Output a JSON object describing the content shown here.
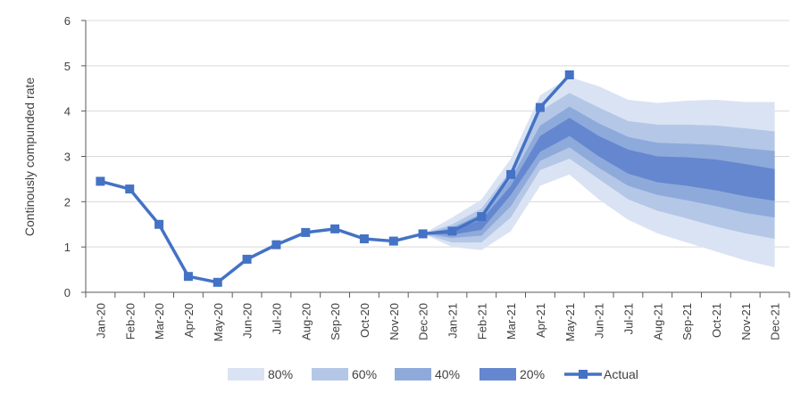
{
  "chart_data": {
    "type": "line",
    "ylabel": "Continously compunded rate",
    "ylim": [
      0,
      6
    ],
    "yticks": [
      0,
      1,
      2,
      3,
      4,
      5,
      6
    ],
    "grid": true,
    "legend_position": "bottom",
    "categories": [
      "Jan-20",
      "Feb-20",
      "Mar-20",
      "Apr-20",
      "May-20",
      "Jun-20",
      "Jul-20",
      "Aug-20",
      "Sep-20",
      "Oct-20",
      "Nov-20",
      "Dec-20",
      "Jan-21",
      "Feb-21",
      "Mar-21",
      "Apr-21",
      "May-21",
      "Jun-21",
      "Jul-21",
      "Aug-21",
      "Sep-21",
      "Oct-21",
      "Nov-21",
      "Dec-21"
    ],
    "series": [
      {
        "name": "Actual",
        "type": "line",
        "color": "#4472c4",
        "values": [
          2.45,
          2.28,
          1.5,
          0.35,
          0.22,
          0.73,
          1.05,
          1.32,
          1.4,
          1.18,
          1.13,
          1.29,
          1.35,
          1.67,
          2.6,
          4.08,
          4.8,
          null,
          null,
          null,
          null,
          null,
          null,
          null
        ]
      }
    ],
    "fan_bands": [
      {
        "name": "80%",
        "color": "#dae3f3",
        "lower": [
          null,
          null,
          null,
          null,
          null,
          null,
          null,
          null,
          null,
          null,
          null,
          1.29,
          1.0,
          0.93,
          1.35,
          2.35,
          2.6,
          2.05,
          1.6,
          1.3,
          1.1,
          0.9,
          0.7,
          0.55
        ],
        "upper": [
          null,
          null,
          null,
          null,
          null,
          null,
          null,
          null,
          null,
          null,
          null,
          1.29,
          1.65,
          2.05,
          2.95,
          4.35,
          4.75,
          4.55,
          4.25,
          4.18,
          4.23,
          4.25,
          4.2,
          4.2
        ]
      },
      {
        "name": "60%",
        "color": "#b4c7e7",
        "lower": [
          null,
          null,
          null,
          null,
          null,
          null,
          null,
          null,
          null,
          null,
          null,
          1.29,
          1.1,
          1.1,
          1.65,
          2.7,
          2.95,
          2.5,
          2.05,
          1.8,
          1.63,
          1.45,
          1.3,
          1.18
        ],
        "upper": [
          null,
          null,
          null,
          null,
          null,
          null,
          null,
          null,
          null,
          null,
          null,
          1.29,
          1.5,
          1.85,
          2.7,
          4.0,
          4.4,
          4.08,
          3.78,
          3.7,
          3.7,
          3.68,
          3.62,
          3.55
        ]
      },
      {
        "name": "40%",
        "color": "#8eaadb",
        "lower": [
          null,
          null,
          null,
          null,
          null,
          null,
          null,
          null,
          null,
          null,
          null,
          1.29,
          1.2,
          1.25,
          1.9,
          2.9,
          3.2,
          2.75,
          2.35,
          2.15,
          2.03,
          1.9,
          1.75,
          1.65
        ],
        "upper": [
          null,
          null,
          null,
          null,
          null,
          null,
          null,
          null,
          null,
          null,
          null,
          1.29,
          1.43,
          1.73,
          2.5,
          3.68,
          4.1,
          3.73,
          3.43,
          3.3,
          3.28,
          3.25,
          3.18,
          3.12
        ]
      },
      {
        "name": "20%",
        "color": "#6487cf",
        "lower": [
          null,
          null,
          null,
          null,
          null,
          null,
          null,
          null,
          null,
          null,
          null,
          1.29,
          1.27,
          1.38,
          2.15,
          3.1,
          3.45,
          3.0,
          2.62,
          2.43,
          2.35,
          2.25,
          2.12,
          2.02
        ],
        "upper": [
          null,
          null,
          null,
          null,
          null,
          null,
          null,
          null,
          null,
          null,
          null,
          1.29,
          1.35,
          1.6,
          2.35,
          3.45,
          3.85,
          3.45,
          3.15,
          3.0,
          2.98,
          2.93,
          2.83,
          2.72
        ]
      }
    ]
  }
}
